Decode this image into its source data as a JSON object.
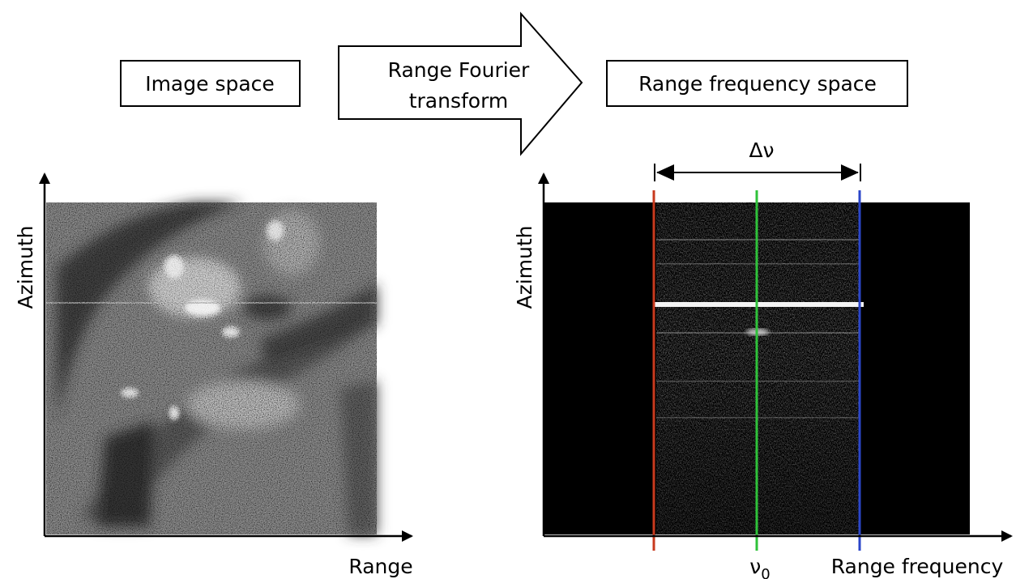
{
  "left_panel": {
    "title": "Image space",
    "x_axis_label": "Range",
    "y_axis_label": "Azimuth"
  },
  "arrow": {
    "label_line1": "Range Fourier",
    "label_line2": "transform"
  },
  "right_panel": {
    "title": "Range frequency space",
    "x_axis_label": "Range frequency",
    "y_axis_label": "Azimuth",
    "bandwidth_label": "Δν",
    "center_freq_symbol": "ν",
    "center_freq_subscript": "0",
    "line_colors": {
      "lower_edge": "#c83a1e",
      "center": "#2fc23a",
      "upper_edge": "#2b46c9"
    }
  }
}
